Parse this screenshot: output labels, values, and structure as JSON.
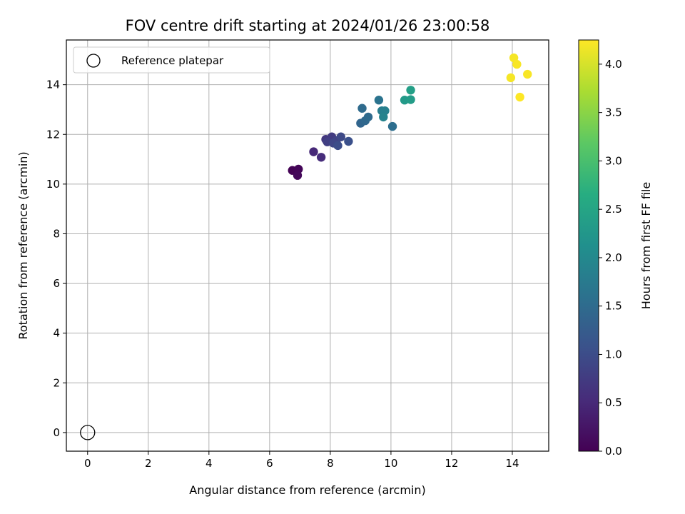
{
  "chart_data": {
    "type": "scatter",
    "title": "FOV centre drift starting at 2024/01/26 23:00:58",
    "xlabel": "Angular distance from reference (arcmin)",
    "ylabel": "Rotation from reference (arcmin)",
    "colorbar_label": "Hours from first FF file",
    "xlim": [
      -0.7,
      15.2
    ],
    "ylim": [
      -0.75,
      15.8
    ],
    "clim": [
      0.0,
      4.25
    ],
    "colormap": "viridis",
    "grid": true,
    "legend_position": "top-left",
    "x_ticks": [
      {
        "value": 0,
        "label": "0"
      },
      {
        "value": 2,
        "label": "2"
      },
      {
        "value": 4,
        "label": "4"
      },
      {
        "value": 6,
        "label": "6"
      },
      {
        "value": 8,
        "label": "8"
      },
      {
        "value": 10,
        "label": "10"
      },
      {
        "value": 12,
        "label": "12"
      },
      {
        "value": 14,
        "label": "14"
      }
    ],
    "y_ticks": [
      {
        "value": 0,
        "label": "0"
      },
      {
        "value": 2,
        "label": "2"
      },
      {
        "value": 4,
        "label": "4"
      },
      {
        "value": 6,
        "label": "6"
      },
      {
        "value": 8,
        "label": "8"
      },
      {
        "value": 10,
        "label": "10"
      },
      {
        "value": 12,
        "label": "12"
      },
      {
        "value": 14,
        "label": "14"
      }
    ],
    "colorbar_ticks": [
      {
        "value": 0.0,
        "label": "0.0"
      },
      {
        "value": 0.5,
        "label": "0.5"
      },
      {
        "value": 1.0,
        "label": "1.0"
      },
      {
        "value": 1.5,
        "label": "1.5"
      },
      {
        "value": 2.0,
        "label": "2.0"
      },
      {
        "value": 2.5,
        "label": "2.5"
      },
      {
        "value": 3.0,
        "label": "3.0"
      },
      {
        "value": 3.5,
        "label": "3.5"
      },
      {
        "value": 4.0,
        "label": "4.0"
      }
    ],
    "reference": {
      "name": "Reference platepar",
      "x": 0,
      "y": 0
    },
    "points": [
      {
        "x": 6.75,
        "y": 10.55,
        "c": 0.02
      },
      {
        "x": 6.95,
        "y": 10.6,
        "c": 0.05
      },
      {
        "x": 6.92,
        "y": 10.35,
        "c": 0.08
      },
      {
        "x": 7.45,
        "y": 11.3,
        "c": 0.5
      },
      {
        "x": 7.7,
        "y": 11.08,
        "c": 0.55
      },
      {
        "x": 7.85,
        "y": 11.8,
        "c": 0.7
      },
      {
        "x": 8.05,
        "y": 11.9,
        "c": 0.75
      },
      {
        "x": 7.9,
        "y": 11.7,
        "c": 0.8
      },
      {
        "x": 8.2,
        "y": 11.75,
        "c": 0.85
      },
      {
        "x": 8.1,
        "y": 11.65,
        "c": 0.9
      },
      {
        "x": 8.35,
        "y": 11.9,
        "c": 0.95
      },
      {
        "x": 8.25,
        "y": 11.55,
        "c": 1.0
      },
      {
        "x": 8.6,
        "y": 11.72,
        "c": 1.05
      },
      {
        "x": 9.0,
        "y": 12.45,
        "c": 1.4
      },
      {
        "x": 9.15,
        "y": 12.55,
        "c": 1.45
      },
      {
        "x": 9.25,
        "y": 12.7,
        "c": 1.48
      },
      {
        "x": 9.05,
        "y": 13.05,
        "c": 1.5
      },
      {
        "x": 10.05,
        "y": 12.32,
        "c": 1.55
      },
      {
        "x": 9.6,
        "y": 13.38,
        "c": 1.62
      },
      {
        "x": 9.7,
        "y": 12.95,
        "c": 1.8
      },
      {
        "x": 9.8,
        "y": 12.95,
        "c": 1.85
      },
      {
        "x": 9.75,
        "y": 12.7,
        "c": 1.9
      },
      {
        "x": 10.45,
        "y": 13.38,
        "c": 2.3
      },
      {
        "x": 10.65,
        "y": 13.4,
        "c": 2.35
      },
      {
        "x": 10.65,
        "y": 13.78,
        "c": 2.4
      },
      {
        "x": 13.95,
        "y": 14.28,
        "c": 4.2
      },
      {
        "x": 14.05,
        "y": 15.08,
        "c": 4.2
      },
      {
        "x": 14.15,
        "y": 14.82,
        "c": 4.22
      },
      {
        "x": 14.5,
        "y": 14.42,
        "c": 4.22
      },
      {
        "x": 14.25,
        "y": 13.5,
        "c": 4.25
      }
    ]
  }
}
